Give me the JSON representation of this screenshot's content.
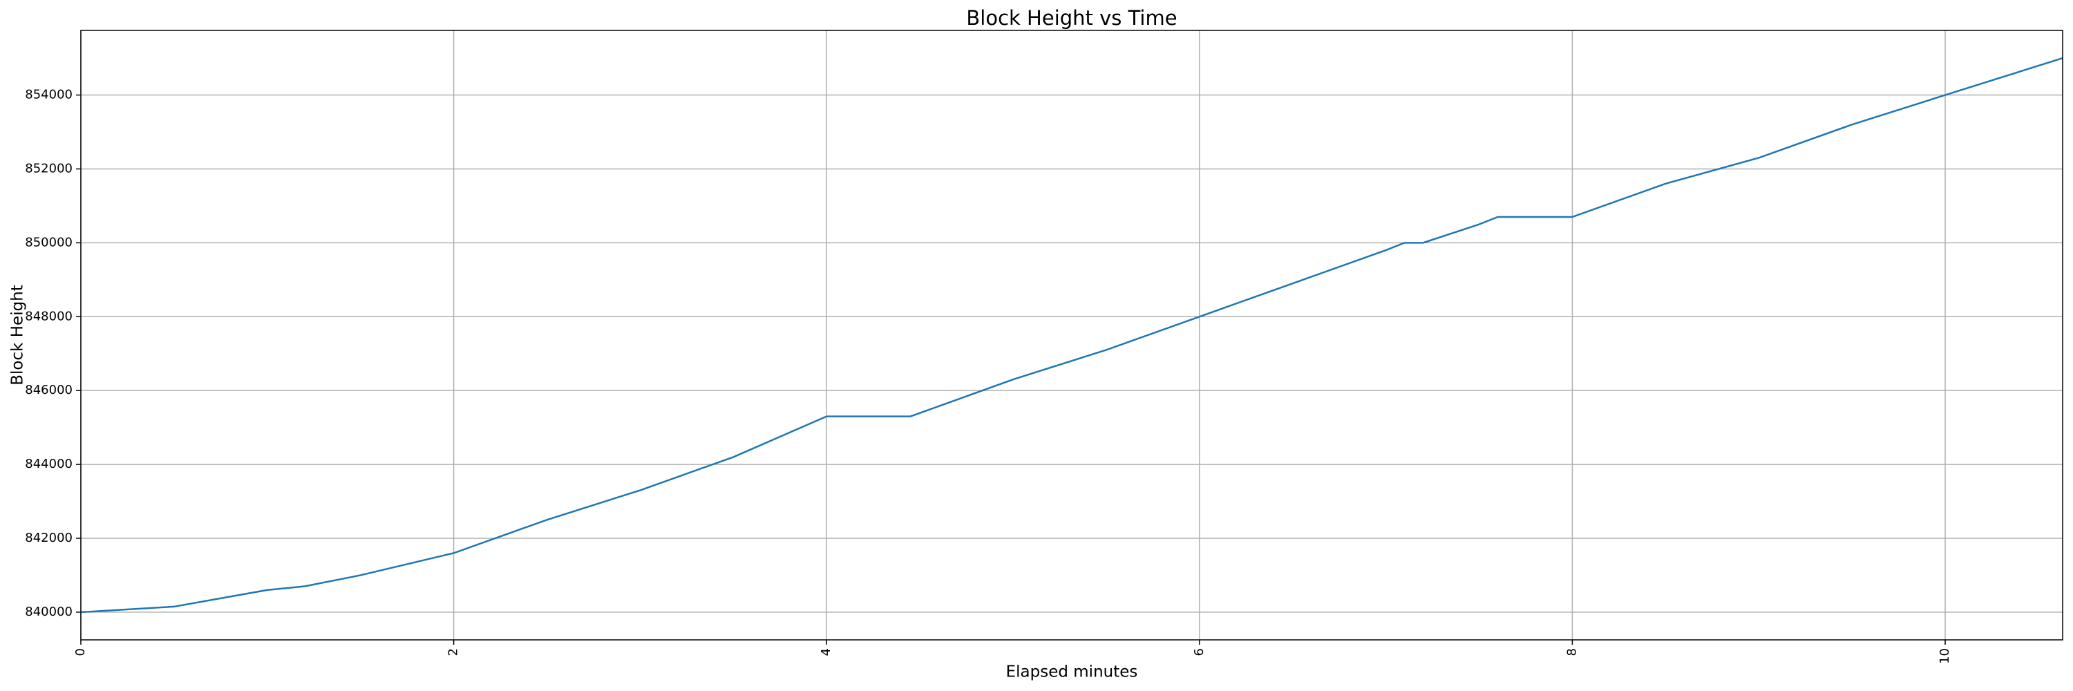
{
  "chart_data": {
    "type": "line",
    "title": "Block Height vs Time",
    "x_label": "Elapsed minutes",
    "y_label": "Block Height",
    "x": [
      0,
      0.5,
      1.0,
      1.2,
      1.5,
      2.0,
      2.5,
      3.0,
      3.5,
      4.0,
      4.45,
      5.0,
      5.5,
      6.0,
      6.5,
      7.0,
      7.1,
      7.2,
      7.5,
      7.6,
      8.0,
      8.5,
      9.0,
      9.5,
      10.0,
      10.63
    ],
    "y": [
      840000,
      840150,
      840600,
      840700,
      841000,
      841600,
      842500,
      843300,
      844200,
      845300,
      845300,
      846300,
      847100,
      848000,
      848900,
      849800,
      850000,
      850000,
      850500,
      850700,
      850700,
      851600,
      852300,
      853200,
      854000,
      855000
    ],
    "color": "#1f77b4",
    "xlim": [
      0,
      10.63
    ],
    "xticks": [
      0,
      2,
      4,
      6,
      8,
      10
    ],
    "ylim": [
      839250,
      855750
    ],
    "yticks": [
      840000,
      842000,
      844000,
      846000,
      848000,
      850000,
      852000,
      854000
    ],
    "grid": true
  }
}
